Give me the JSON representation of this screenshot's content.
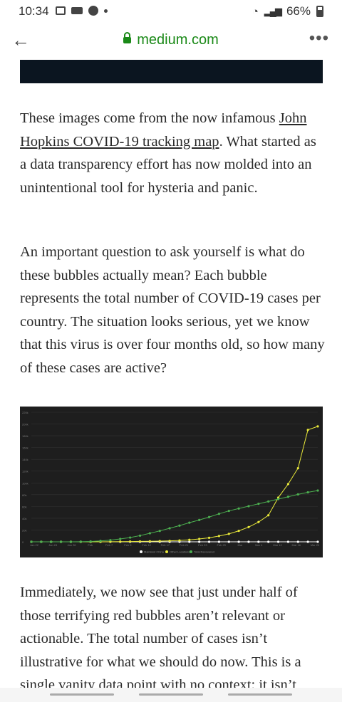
{
  "status_bar": {
    "time": "10:34",
    "battery": "66%"
  },
  "url_bar": {
    "domain": "medium.com"
  },
  "article": {
    "p1_before_link": "These images come from the now infamous ",
    "p1_link": "John Hopkins COVID-19 tracking map",
    "p1_after_link": ". What started as a data transparency effort has now molded into an unintentional tool for hysteria and panic.",
    "p2": "An important question to ask yourself is what do these bubbles actually mean? Each bubble represents the total number of COVID-19 cases per country. The situation looks serious, yet we know that this virus is over four months old, so how many of these cases are active?",
    "p3": "Immediately, we now see that just under half of those terrifying red bubbles aren’t relevant or actionable. The total number of cases isn’t illustrative for what we should do now. This is a single vanity data point with no context; it isn’t"
  },
  "chart_data": {
    "type": "line",
    "x": [
      "Jan 22",
      "Jan 24",
      "Jan 26",
      "Jan 28",
      "Jan 30",
      "Feb 1",
      "Feb 3",
      "Feb 5",
      "Feb 7",
      "Feb 9",
      "Feb 11",
      "Feb 13",
      "Feb 15",
      "Feb 17",
      "Feb 19",
      "Feb 21",
      "Feb 23",
      "Feb 25",
      "Feb 27",
      "Feb 29",
      "Mar 2",
      "Mar 4",
      "Mar 6",
      "Mar 8",
      "Mar 10",
      "Mar 12",
      "Mar 14",
      "Mar 16",
      "Mar 18",
      "Mar 20"
    ],
    "x_tick_labels": [
      "Jan 22",
      "Jan 24",
      "Jan 26",
      "Feb",
      "Feb 7",
      "Feb 9",
      "Feb 12",
      "Feb 17",
      "Feb 21",
      "Feb 23",
      "Feb 29",
      "Mar",
      "Mar 4",
      "Mar 12",
      "Mar 16",
      "Mar 20"
    ],
    "y_tick_labels": [
      "0",
      "20k",
      "40k",
      "60k",
      "80k",
      "100k",
      "120k",
      "140k",
      "160k",
      "180k",
      "200k",
      "220k"
    ],
    "ylim": [
      0,
      220000
    ],
    "series": [
      {
        "name": "Mainland China",
        "color": "#ffffff",
        "values": [
          0,
          0,
          0,
          0,
          0,
          0,
          0,
          0,
          0,
          0,
          0,
          0,
          0,
          0,
          0,
          0,
          0,
          0,
          0,
          0,
          0,
          0,
          0,
          0,
          0,
          0,
          0,
          0,
          0,
          0
        ]
      },
      {
        "name": "Other Locations",
        "color": "#e8e83a",
        "values": [
          0,
          0,
          0,
          0,
          0,
          0,
          0,
          0,
          100,
          300,
          500,
          700,
          900,
          1200,
          1600,
          2300,
          3300,
          4800,
          6800,
          9800,
          13500,
          18600,
          25000,
          33500,
          45000,
          75000,
          98000,
          125000,
          190000,
          196000
        ]
      },
      {
        "name": "Total Recovered",
        "color": "#4caf50",
        "values": [
          0,
          0,
          0,
          0,
          0,
          200,
          600,
          1500,
          2800,
          4800,
          7200,
          10500,
          14500,
          18500,
          23000,
          27500,
          32500,
          37000,
          42000,
          47500,
          52500,
          56500,
          60500,
          64500,
          68500,
          72500,
          76500,
          80500,
          84000,
          87000
        ]
      }
    ],
    "legend_position": "bottom",
    "grid": true
  }
}
